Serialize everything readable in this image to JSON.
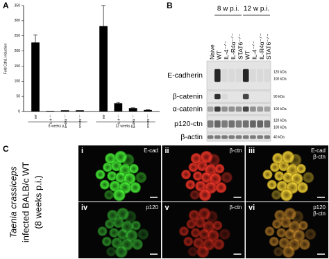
{
  "chart_data": {
    "type": "bar",
    "panel_label": "A",
    "ylabel": "Fold Cdh1 induction",
    "categories": [
      "WT",
      "IL-4⁻ᐟ⁻",
      "IL-4Rα⁻ᐟ⁻",
      "STAT6⁻ᐟ⁻",
      "WT",
      "IL-4⁻ᐟ⁻",
      "IL-4Rα⁻ᐟ⁻",
      "STAT6⁻ᐟ⁻"
    ],
    "groups": [
      "8 weeks p.i.",
      "12 weeks p.i."
    ],
    "values": [
      228,
      2,
      4,
      4,
      282,
      27,
      11,
      5
    ],
    "errors": [
      25,
      0,
      0,
      0,
      68,
      3,
      1,
      1
    ],
    "color": "#000000",
    "ylim": [
      0,
      350
    ],
    "yticks": [
      0,
      50,
      100,
      150,
      200,
      250,
      300,
      350
    ]
  },
  "panels": {
    "B": {
      "label": "B",
      "groups": [
        "8 w p.i.",
        "12 w p.i."
      ],
      "lanes": [
        "Naive",
        "WT",
        "IL-4⁻ᐟ⁻",
        "IL-R4α⁻ᐟ⁻",
        "STAT6⁻ᐟ⁻",
        "WT",
        "IL-4⁻ᐟ⁻",
        "IL-R4α⁻ᐟ⁻",
        "STAT6⁻ᐟ⁻"
      ],
      "rows": [
        {
          "name": "E-cadherin",
          "markers": [
            "120 kDa",
            "100 kDa"
          ]
        },
        {
          "name": "β-catenin",
          "markers": [
            "90 kDa"
          ]
        },
        {
          "name": "α-catenin",
          "markers": [
            "100 kDa"
          ]
        },
        {
          "name": "p120-ctn",
          "markers": [
            "120 kDa",
            "100 kDa"
          ]
        },
        {
          "name": "β-actin",
          "markers": [
            "40 kDa"
          ]
        }
      ]
    },
    "C": {
      "label": "C",
      "side_label": [
        "Taenia crassiceps",
        "infected BALB/c WT",
        "(8 weeks p.i.)"
      ],
      "images": [
        {
          "numeral": "i",
          "tags": [
            "E-cad"
          ]
        },
        {
          "numeral": "ii",
          "tags": [
            "β-ctn"
          ]
        },
        {
          "numeral": "iii",
          "tags": [
            "E-cad",
            "β-ctn"
          ]
        },
        {
          "numeral": "iv",
          "tags": [
            "p120"
          ]
        },
        {
          "numeral": "v",
          "tags": [
            "β-ctn"
          ]
        },
        {
          "numeral": "vi",
          "tags": [
            "p120",
            "β-ctn"
          ]
        }
      ]
    }
  }
}
